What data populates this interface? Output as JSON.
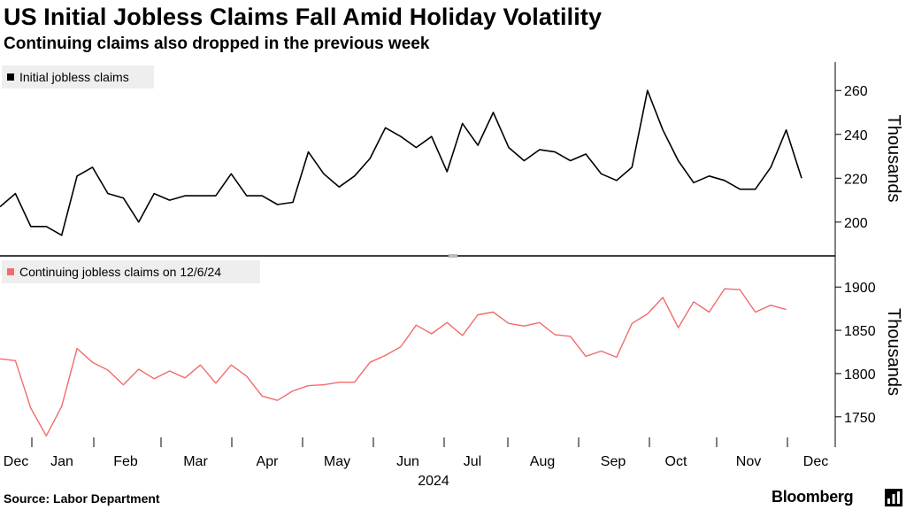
{
  "header": {
    "title": "US Initial Jobless Claims Fall Amid Holiday Volatility",
    "subtitle": "Continuing claims also dropped in the previous week"
  },
  "footer": {
    "source": "Source: Labor Department",
    "brand": "Bloomberg"
  },
  "colors": {
    "initial_line": "#000000",
    "continuing_line": "#f26b6b",
    "axis": "#000000",
    "legend_bg": "#eeeeee"
  },
  "chart_data": [
    {
      "type": "line",
      "panel": "top",
      "legend": "Initial jobless claims",
      "ylabel": "Thousands",
      "ylim": [
        185,
        273
      ],
      "yticks": [
        200,
        220,
        240,
        260
      ],
      "legend_position": "top-left",
      "grid": false,
      "series": [
        {
          "name": "Initial jobless claims",
          "values": [
            207,
            213,
            198,
            198,
            194,
            221,
            225,
            213,
            211,
            200,
            213,
            210,
            212,
            212,
            212,
            222,
            212,
            212,
            208,
            209,
            232,
            222,
            216,
            221,
            229,
            243,
            239,
            234,
            239,
            223,
            245,
            235,
            250,
            234,
            228,
            233,
            232,
            228,
            231,
            222,
            219,
            225,
            260,
            242,
            228,
            218,
            221,
            219,
            215,
            215,
            225,
            242,
            220
          ]
        }
      ]
    },
    {
      "type": "line",
      "panel": "bottom",
      "legend": "Continuing jobless claims on 12/6/24",
      "ylabel": "Thousands",
      "ylim": [
        1715,
        1935
      ],
      "yticks": [
        1750,
        1800,
        1850,
        1900
      ],
      "legend_position": "top-left",
      "grid": false,
      "series": [
        {
          "name": "Continuing jobless claims on 12/6/24",
          "values": [
            1817,
            1815,
            1760,
            1728,
            1762,
            1829,
            1813,
            1804,
            1787,
            1805,
            1794,
            1803,
            1795,
            1810,
            1789,
            1810,
            1797,
            1774,
            1769,
            1780,
            1786,
            1787,
            1790,
            1790,
            1813,
            1821,
            1831,
            1856,
            1846,
            1859,
            1844,
            1868,
            1871,
            1858,
            1855,
            1859,
            1845,
            1843,
            1820,
            1826,
            1819,
            1858,
            1869,
            1888,
            1853,
            1883,
            1871,
            1898,
            1897,
            1871,
            1879,
            1874
          ]
        }
      ]
    }
  ],
  "x_axis": {
    "tick_labels": [
      "Dec",
      "Jan",
      "Feb",
      "Mar",
      "Apr",
      "May",
      "Jun",
      "Jul",
      "Aug",
      "Sep",
      "Oct",
      "Nov",
      "Dec"
    ],
    "year_label": "2024"
  }
}
